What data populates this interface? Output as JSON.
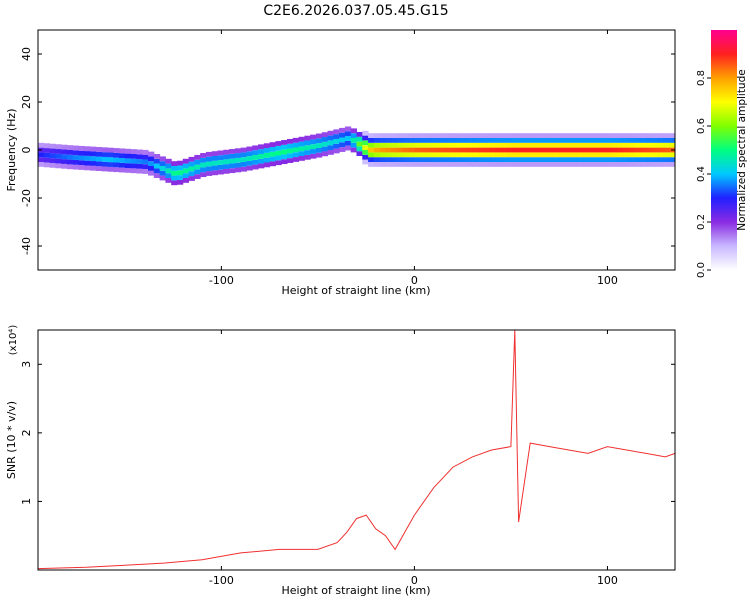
{
  "title": "C2E6.2026.037.05.45.G15",
  "colors": {
    "snr_line": "#f03030"
  },
  "chart_data": [
    {
      "type": "heatmap",
      "xlabel": "Height of straight line (km)",
      "ylabel": "Frequency (Hz)",
      "xlim": [
        -195,
        135
      ],
      "ylim": [
        -50,
        50
      ],
      "xticks": [
        -100,
        0,
        100
      ],
      "yticks": [
        -40,
        -20,
        0,
        20,
        40
      ],
      "colorbar": {
        "label": "Normalized spectral amplitude",
        "range": [
          0.0,
          1.0
        ],
        "ticks": [
          0.0,
          0.2,
          0.4,
          0.6,
          0.8
        ],
        "colormap": [
          "#ffffff",
          "#c8b8ff",
          "#8a2be2",
          "#2020ff",
          "#00c8ff",
          "#00ff80",
          "#80ff00",
          "#ffff00",
          "#ffa000",
          "#ff2020",
          "#ff0090"
        ]
      },
      "ridge": {
        "x": [
          -195,
          -180,
          -160,
          -140,
          -125,
          -110,
          -90,
          -70,
          -50,
          -35,
          -25,
          -20,
          0,
          50,
          100,
          135
        ],
        "freq": [
          -2,
          -3,
          -4,
          -5,
          -10,
          -6,
          -4,
          -1,
          2,
          5,
          0,
          0,
          0,
          0,
          0,
          0
        ],
        "amplitude": [
          0.3,
          0.35,
          0.4,
          0.35,
          0.5,
          0.45,
          0.45,
          0.5,
          0.45,
          0.4,
          0.75,
          0.8,
          0.85,
          0.9,
          0.9,
          0.85
        ]
      }
    },
    {
      "type": "line",
      "xlabel": "Height of straight line (km)",
      "ylabel": "SNR (10 * v/v)",
      "yscale_label": "(x10⁴)",
      "xlim": [
        -195,
        135
      ],
      "ylim": [
        0,
        3.5
      ],
      "xticks": [
        -100,
        0,
        100
      ],
      "yticks": [
        1,
        2,
        3
      ],
      "series": [
        {
          "x": [
            -195,
            -170,
            -150,
            -130,
            -110,
            -90,
            -70,
            -50,
            -40,
            -35,
            -30,
            -25,
            -20,
            -15,
            -10,
            0,
            10,
            20,
            30,
            40,
            50,
            52,
            54,
            60,
            70,
            80,
            90,
            100,
            110,
            120,
            130,
            135
          ],
          "y": [
            0.02,
            0.04,
            0.07,
            0.1,
            0.15,
            0.25,
            0.3,
            0.3,
            0.4,
            0.55,
            0.75,
            0.8,
            0.6,
            0.5,
            0.3,
            0.8,
            1.2,
            1.5,
            1.65,
            1.75,
            1.8,
            3.5,
            0.7,
            1.85,
            1.8,
            1.75,
            1.7,
            1.8,
            1.75,
            1.7,
            1.65,
            1.7
          ]
        }
      ]
    }
  ]
}
